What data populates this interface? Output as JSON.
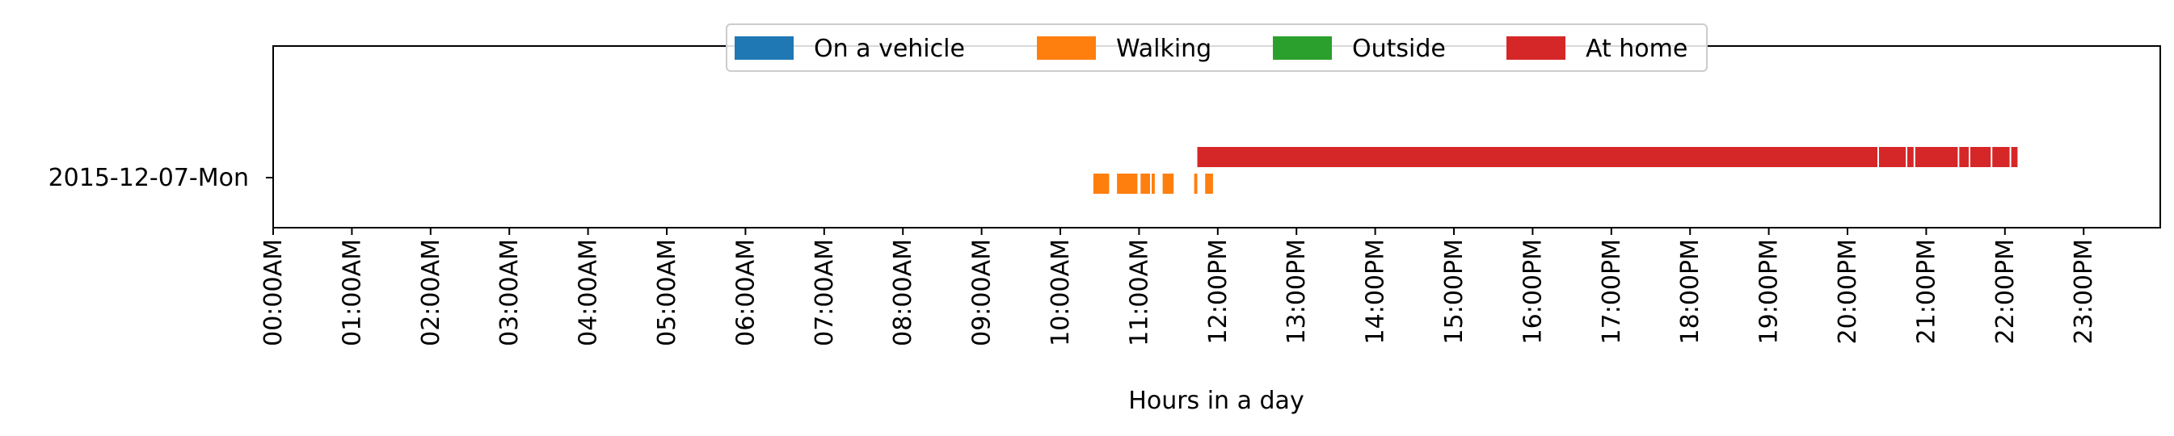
{
  "chart_data": {
    "type": "timeline",
    "xlabel": "Hours in a day",
    "ylabel": "",
    "xlim": [
      0,
      24
    ],
    "x_tick_labels": [
      "00:00AM",
      "01:00AM",
      "02:00AM",
      "03:00AM",
      "04:00AM",
      "05:00AM",
      "06:00AM",
      "07:00AM",
      "08:00AM",
      "09:00AM",
      "10:00AM",
      "11:00AM",
      "12:00PM",
      "13:00PM",
      "14:00PM",
      "15:00PM",
      "16:00PM",
      "17:00PM",
      "18:00PM",
      "19:00PM",
      "20:00PM",
      "21:00PM",
      "22:00PM",
      "23:00PM"
    ],
    "categories": [
      "2015-12-07-Mon"
    ],
    "legend_position": "top-center",
    "grid": false,
    "series": [
      {
        "name": "On a vehicle",
        "color": "#1f77b4",
        "intervals": []
      },
      {
        "name": "Walking",
        "color": "#ff7f0e",
        "intervals": [
          [
            10.42,
            10.62
          ],
          [
            10.72,
            10.98
          ],
          [
            11.02,
            11.14
          ],
          [
            11.16,
            11.2
          ],
          [
            11.3,
            11.44
          ],
          [
            11.7,
            11.74
          ],
          [
            11.84,
            11.94
          ]
        ]
      },
      {
        "name": "Outside",
        "color": "#2ca02c",
        "intervals": []
      },
      {
        "name": "At home",
        "color": "#d62728",
        "intervals": [
          [
            11.74,
            20.38
          ],
          [
            20.4,
            20.74
          ],
          [
            20.76,
            20.84
          ],
          [
            20.86,
            21.4
          ],
          [
            21.42,
            21.54
          ],
          [
            21.56,
            21.82
          ],
          [
            21.84,
            22.06
          ],
          [
            22.08,
            22.16
          ]
        ]
      }
    ]
  }
}
